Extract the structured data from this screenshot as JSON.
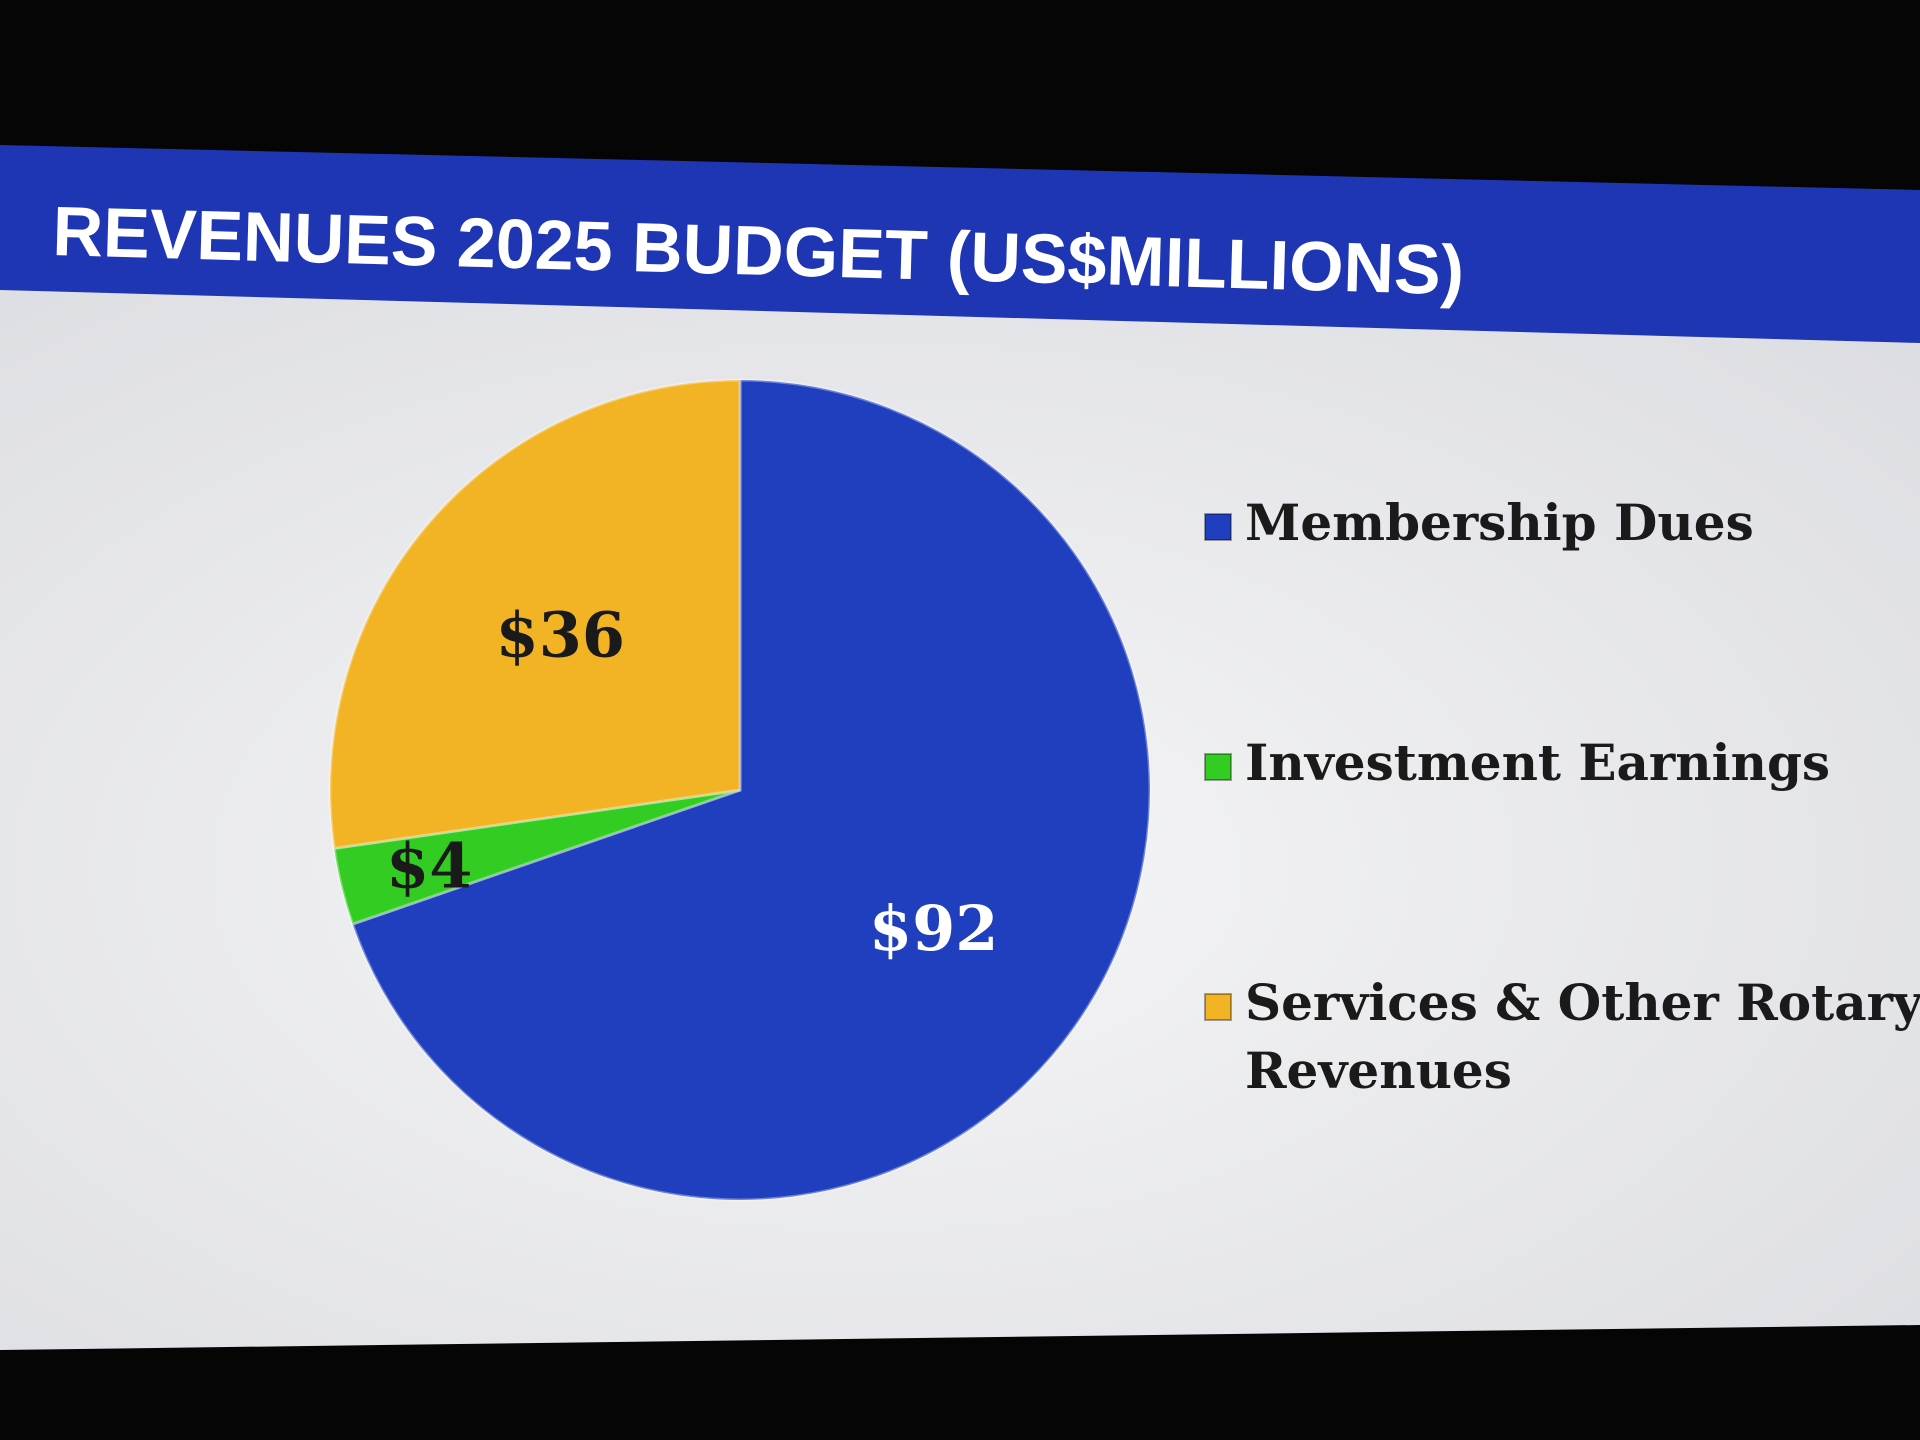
{
  "slide": {
    "title": "REVENUES 2025 BUDGET (US$MILLIONS)"
  },
  "chart_data": {
    "type": "pie",
    "title": "REVENUES 2025 BUDGET (US$MILLIONS)",
    "legend_position": "right",
    "slices": [
      {
        "name": "Membership Dues",
        "value": 92,
        "label": "$92",
        "color": "#1f3fbf",
        "label_color": "#ffffff"
      },
      {
        "name": "Investment Earnings",
        "value": 4,
        "label": "$4",
        "color": "#33cc22",
        "label_color": "#1a1a1a"
      },
      {
        "name": "Services & Other Rotary Revenues",
        "value": 36,
        "label": "$36",
        "color": "#f2b324",
        "label_color": "#1a1a1a"
      }
    ],
    "legend": [
      {
        "lines": [
          "Membership Dues"
        ],
        "color": "#1f3fbf"
      },
      {
        "lines": [
          "Investment Earnings"
        ],
        "color": "#33cc22"
      },
      {
        "lines": [
          "Services & Other Rotary",
          "Revenues"
        ],
        "color": "#f2b324"
      }
    ]
  },
  "colors": {
    "header_bar": "#1e36b4",
    "slide_background": "#ecedf0",
    "title_text": "#ffffff",
    "legend_text": "#1a1a1a"
  }
}
